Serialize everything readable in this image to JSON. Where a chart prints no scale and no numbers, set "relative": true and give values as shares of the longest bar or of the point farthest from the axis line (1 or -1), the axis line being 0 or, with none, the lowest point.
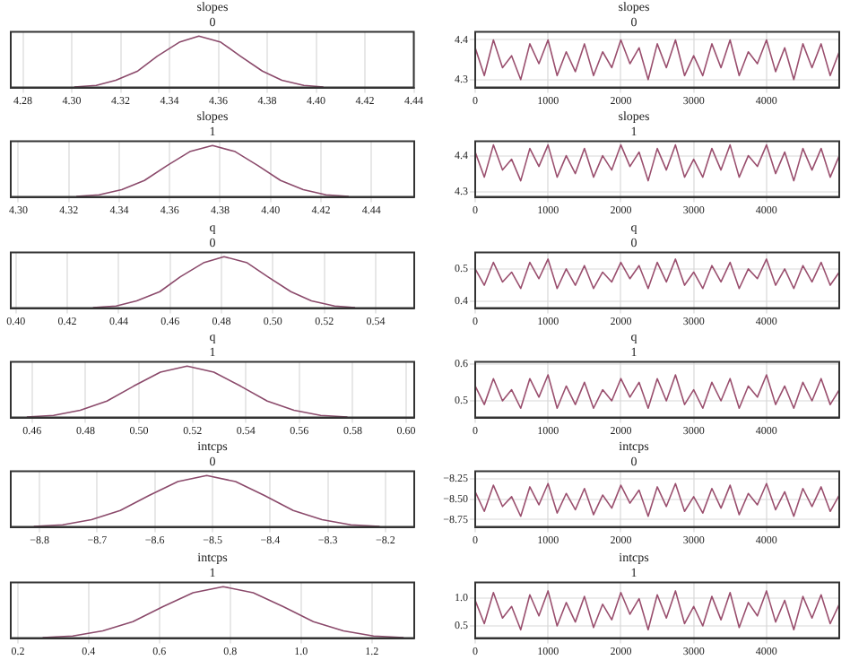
{
  "chart_data": [
    {
      "type": "line",
      "title": "slopes",
      "subtitle": "0",
      "relative": true,
      "grid": "x",
      "marker": "none",
      "x": [
        4.301,
        4.31,
        4.318,
        4.327,
        4.335,
        4.344,
        4.352,
        4.361,
        4.369,
        4.378,
        4.386,
        4.395,
        4.403
      ],
      "series": [
        {
          "color": "#8b4a6b",
          "values": [
            0.01,
            0.04,
            0.14,
            0.32,
            0.61,
            0.88,
            1,
            0.88,
            0.61,
            0.32,
            0.14,
            0.04,
            0.01
          ]
        }
      ],
      "xlim": [
        4.275,
        4.44
      ],
      "xticks": [
        4.28,
        {
          "value": 4.3,
          "label": "4.30"
        },
        4.32,
        4.34,
        4.36,
        4.38,
        {
          "value": 4.4,
          "label": "4.40"
        },
        4.42,
        4.44
      ]
    },
    {
      "type": "line",
      "title": "slopes",
      "subtitle": "0",
      "grid": true,
      "marker": "none",
      "x": [
        0,
        125,
        250,
        375,
        500,
        625,
        750,
        875,
        1000,
        1125,
        1250,
        1375,
        1500,
        1625,
        1750,
        1875,
        2000,
        2125,
        2250,
        2375,
        2500,
        2625,
        2750,
        2875,
        3000,
        3125,
        3250,
        3375,
        3500,
        3625,
        3750,
        3875,
        4000,
        4125,
        4250,
        4375,
        4500,
        4625,
        4750,
        4875,
        4999
      ],
      "series": [
        {
          "color": "#9a4f6e",
          "values": [
            4.38,
            4.31,
            4.4,
            4.33,
            4.36,
            4.3,
            4.39,
            4.34,
            4.4,
            4.31,
            4.37,
            4.32,
            4.39,
            4.31,
            4.37,
            4.33,
            4.4,
            4.34,
            4.38,
            4.3,
            4.39,
            4.33,
            4.4,
            4.31,
            4.36,
            4.31,
            4.39,
            4.33,
            4.4,
            4.31,
            4.37,
            4.34,
            4.4,
            4.32,
            4.38,
            4.3,
            4.39,
            4.33,
            4.39,
            4.31,
            4.37
          ]
        }
      ],
      "xlim": [
        0,
        4999
      ],
      "xticks": [
        0,
        1000,
        2000,
        3000,
        4000
      ],
      "ylim": [
        4.28,
        4.42
      ],
      "yticks": [
        4.3,
        4.4
      ]
    },
    {
      "type": "line",
      "title": "slopes",
      "subtitle": "1",
      "relative": true,
      "grid": "x",
      "marker": "none",
      "x": [
        4.323,
        4.332,
        4.341,
        4.35,
        4.359,
        4.368,
        4.377,
        4.386,
        4.395,
        4.404,
        4.413,
        4.422,
        4.431
      ],
      "series": [
        {
          "color": "#8b4a6b",
          "values": [
            0.01,
            0.04,
            0.14,
            0.32,
            0.61,
            0.88,
            1,
            0.88,
            0.61,
            0.32,
            0.14,
            0.04,
            0.01
          ]
        }
      ],
      "xlim": [
        4.297,
        4.457
      ],
      "xticks": [
        {
          "value": 4.3,
          "label": "4.30"
        },
        4.32,
        4.34,
        4.36,
        4.38,
        {
          "value": 4.4,
          "label": "4.40"
        },
        4.42,
        4.44
      ]
    },
    {
      "type": "line",
      "title": "slopes",
      "subtitle": "1",
      "grid": true,
      "marker": "none",
      "x": [
        0,
        125,
        250,
        375,
        500,
        625,
        750,
        875,
        1000,
        1125,
        1250,
        1375,
        1500,
        1625,
        1750,
        1875,
        2000,
        2125,
        2250,
        2375,
        2500,
        2625,
        2750,
        2875,
        3000,
        3125,
        3250,
        3375,
        3500,
        3625,
        3750,
        3875,
        4000,
        4125,
        4250,
        4375,
        4500,
        4625,
        4750,
        4875,
        4999
      ],
      "series": [
        {
          "color": "#9a4f6e",
          "values": [
            4.41,
            4.34,
            4.43,
            4.36,
            4.39,
            4.33,
            4.42,
            4.37,
            4.43,
            4.34,
            4.4,
            4.35,
            4.42,
            4.34,
            4.4,
            4.36,
            4.43,
            4.37,
            4.41,
            4.33,
            4.42,
            4.36,
            4.43,
            4.34,
            4.39,
            4.34,
            4.42,
            4.36,
            4.43,
            4.34,
            4.4,
            4.37,
            4.43,
            4.35,
            4.41,
            4.33,
            4.42,
            4.36,
            4.42,
            4.34,
            4.4
          ]
        }
      ],
      "xlim": [
        0,
        4999
      ],
      "xticks": [
        0,
        1000,
        2000,
        3000,
        4000
      ],
      "ylim": [
        4.285,
        4.44
      ],
      "yticks": [
        4.3,
        4.4
      ]
    },
    {
      "type": "line",
      "title": "q",
      "subtitle": "0",
      "relative": true,
      "grid": "x",
      "marker": "none",
      "x": [
        0.43,
        0.439,
        0.447,
        0.456,
        0.464,
        0.473,
        0.481,
        0.49,
        0.498,
        0.507,
        0.515,
        0.524,
        0.532
      ],
      "series": [
        {
          "color": "#8b4a6b",
          "values": [
            0.01,
            0.04,
            0.14,
            0.32,
            0.61,
            0.88,
            1,
            0.88,
            0.61,
            0.32,
            0.14,
            0.04,
            0.01
          ]
        }
      ],
      "xlim": [
        0.398,
        0.555
      ],
      "xticks": [
        {
          "value": 0.4,
          "label": "0.40"
        },
        0.42,
        0.44,
        0.46,
        0.48,
        {
          "value": 0.5,
          "label": "0.50"
        },
        0.52,
        0.54
      ]
    },
    {
      "type": "line",
      "title": "q",
      "subtitle": "0",
      "grid": true,
      "marker": "none",
      "x": [
        0,
        125,
        250,
        375,
        500,
        625,
        750,
        875,
        1000,
        1125,
        1250,
        1375,
        1500,
        1625,
        1750,
        1875,
        2000,
        2125,
        2250,
        2375,
        2500,
        2625,
        2750,
        2875,
        3000,
        3125,
        3250,
        3375,
        3500,
        3625,
        3750,
        3875,
        4000,
        4125,
        4250,
        4375,
        4500,
        4625,
        4750,
        4875,
        4999
      ],
      "series": [
        {
          "color": "#9a4f6e",
          "values": [
            0.5,
            0.45,
            0.52,
            0.46,
            0.49,
            0.44,
            0.52,
            0.47,
            0.53,
            0.44,
            0.5,
            0.45,
            0.51,
            0.44,
            0.49,
            0.46,
            0.52,
            0.47,
            0.51,
            0.44,
            0.52,
            0.46,
            0.53,
            0.45,
            0.49,
            0.44,
            0.51,
            0.46,
            0.52,
            0.44,
            0.5,
            0.47,
            0.53,
            0.45,
            0.5,
            0.44,
            0.51,
            0.46,
            0.52,
            0.45,
            0.49
          ]
        }
      ],
      "xlim": [
        0,
        4999
      ],
      "xticks": [
        0,
        1000,
        2000,
        3000,
        4000
      ],
      "ylim": [
        0.38,
        0.55
      ],
      "yticks": [
        0.4,
        0.5
      ]
    },
    {
      "type": "line",
      "title": "q",
      "subtitle": "1",
      "relative": true,
      "grid": "x",
      "marker": "none",
      "x": [
        0.458,
        0.468,
        0.478,
        0.488,
        0.498,
        0.508,
        0.518,
        0.528,
        0.538,
        0.548,
        0.558,
        0.568,
        0.578
      ],
      "series": [
        {
          "color": "#8b4a6b",
          "values": [
            0.01,
            0.04,
            0.14,
            0.32,
            0.61,
            0.88,
            1,
            0.88,
            0.61,
            0.32,
            0.14,
            0.04,
            0.01
          ]
        }
      ],
      "xlim": [
        0.452,
        0.603
      ],
      "xticks": [
        0.46,
        0.48,
        {
          "value": 0.5,
          "label": "0.50"
        },
        0.52,
        0.54,
        0.56,
        0.58,
        {
          "value": 0.6,
          "label": "0.60"
        }
      ]
    },
    {
      "type": "line",
      "title": "q",
      "subtitle": "1",
      "grid": true,
      "marker": "none",
      "x": [
        0,
        125,
        250,
        375,
        500,
        625,
        750,
        875,
        1000,
        1125,
        1250,
        1375,
        1500,
        1625,
        1750,
        1875,
        2000,
        2125,
        2250,
        2375,
        2500,
        2625,
        2750,
        2875,
        3000,
        3125,
        3250,
        3375,
        3500,
        3625,
        3750,
        3875,
        4000,
        4125,
        4250,
        4375,
        4500,
        4625,
        4750,
        4875,
        4999
      ],
      "series": [
        {
          "color": "#9a4f6e",
          "values": [
            0.54,
            0.49,
            0.56,
            0.5,
            0.53,
            0.48,
            0.56,
            0.51,
            0.57,
            0.48,
            0.54,
            0.49,
            0.55,
            0.48,
            0.53,
            0.5,
            0.56,
            0.51,
            0.55,
            0.48,
            0.56,
            0.5,
            0.57,
            0.49,
            0.53,
            0.48,
            0.55,
            0.5,
            0.56,
            0.48,
            0.54,
            0.51,
            0.57,
            0.49,
            0.54,
            0.48,
            0.55,
            0.5,
            0.56,
            0.49,
            0.53
          ]
        }
      ],
      "xlim": [
        0,
        4999
      ],
      "xticks": [
        0,
        1000,
        2000,
        3000,
        4000
      ],
      "ylim": [
        0.455,
        0.605
      ],
      "yticks": [
        0.5,
        0.6
      ]
    },
    {
      "type": "line",
      "title": "intcps",
      "subtitle": "0",
      "relative": true,
      "grid": "x",
      "marker": "none",
      "x": [
        -8.81,
        -8.76,
        -8.71,
        -8.66,
        -8.61,
        -8.56,
        -8.51,
        -8.46,
        -8.41,
        -8.36,
        -8.31,
        -8.26,
        -8.21
      ],
      "series": [
        {
          "color": "#8b4a6b",
          "values": [
            0.01,
            0.04,
            0.14,
            0.32,
            0.61,
            0.88,
            1,
            0.88,
            0.61,
            0.32,
            0.14,
            0.04,
            0.01
          ]
        }
      ],
      "xlim": [
        -8.85,
        -8.15
      ],
      "xticks": [
        {
          "value": -8.8,
          "label": "−8.8"
        },
        {
          "value": -8.7,
          "label": "−8.7"
        },
        {
          "value": -8.6,
          "label": "−8.6"
        },
        {
          "value": -8.5,
          "label": "−8.5"
        },
        {
          "value": -8.4,
          "label": "−8.4"
        },
        {
          "value": -8.3,
          "label": "−8.3"
        },
        {
          "value": -8.2,
          "label": "−8.2"
        }
      ]
    },
    {
      "type": "line",
      "title": "intcps",
      "subtitle": "0",
      "grid": true,
      "marker": "none",
      "x": [
        0,
        125,
        250,
        375,
        500,
        625,
        750,
        875,
        1000,
        1125,
        1250,
        1375,
        1500,
        1625,
        1750,
        1875,
        2000,
        2125,
        2250,
        2375,
        2500,
        2625,
        2750,
        2875,
        3000,
        3125,
        3250,
        3375,
        3500,
        3625,
        3750,
        3875,
        4000,
        4125,
        4250,
        4375,
        4500,
        4625,
        4750,
        4875,
        4999
      ],
      "series": [
        {
          "color": "#9a4f6e",
          "values": [
            -8.41,
            -8.65,
            -8.33,
            -8.59,
            -8.47,
            -8.71,
            -8.35,
            -8.57,
            -8.31,
            -8.67,
            -8.43,
            -8.63,
            -8.37,
            -8.69,
            -8.45,
            -8.61,
            -8.33,
            -8.55,
            -8.39,
            -8.71,
            -8.35,
            -8.59,
            -8.31,
            -8.65,
            -8.47,
            -8.67,
            -8.37,
            -8.61,
            -8.33,
            -8.69,
            -8.43,
            -8.57,
            -8.31,
            -8.63,
            -8.41,
            -8.71,
            -8.37,
            -8.59,
            -8.35,
            -8.65,
            -8.45
          ]
        }
      ],
      "xlim": [
        0,
        4999
      ],
      "xticks": [
        0,
        1000,
        2000,
        3000,
        4000
      ],
      "ylim": [
        -8.84,
        -8.16
      ],
      "yticks": [
        {
          "value": -8.75,
          "label": "−8.75"
        },
        {
          "value": -8.5,
          "label": "−8.50"
        },
        {
          "value": -8.25,
          "label": "−8.25"
        }
      ]
    },
    {
      "type": "line",
      "title": "intcps",
      "subtitle": "1",
      "relative": true,
      "grid": "x",
      "marker": "none",
      "x": [
        0.27,
        0.355,
        0.44,
        0.525,
        0.61,
        0.695,
        0.78,
        0.865,
        0.95,
        1.035,
        1.12,
        1.205,
        1.29
      ],
      "series": [
        {
          "color": "#8b4a6b",
          "values": [
            0.01,
            0.04,
            0.14,
            0.32,
            0.61,
            0.88,
            1,
            0.88,
            0.61,
            0.32,
            0.14,
            0.04,
            0.01
          ]
        }
      ],
      "xlim": [
        0.18,
        1.32
      ],
      "xticks": [
        0.2,
        0.4,
        0.6,
        0.8,
        {
          "value": 1,
          "label": "1.0"
        },
        1.2
      ]
    },
    {
      "type": "line",
      "title": "intcps",
      "subtitle": "1",
      "grid": true,
      "marker": "none",
      "x": [
        0,
        125,
        250,
        375,
        500,
        625,
        750,
        875,
        1000,
        1125,
        1250,
        1375,
        1500,
        1625,
        1750,
        1875,
        2000,
        2125,
        2250,
        2375,
        2500,
        2625,
        2750,
        2875,
        3000,
        3125,
        3250,
        3375,
        3500,
        3625,
        3750,
        3875,
        4000,
        4125,
        4250,
        4375,
        4500,
        4625,
        4750,
        4875,
        4999
      ],
      "series": [
        {
          "color": "#9a4f6e",
          "values": [
            0.96,
            0.54,
            1.1,
            0.64,
            0.85,
            0.43,
            1.06,
            0.68,
            1.13,
            0.5,
            0.92,
            0.57,
            1.03,
            0.47,
            0.89,
            0.61,
            1.1,
            0.71,
            0.99,
            0.43,
            1.06,
            0.64,
            1.13,
            0.54,
            0.85,
            0.5,
            1.03,
            0.61,
            1.1,
            0.47,
            0.92,
            0.68,
            1.13,
            0.57,
            0.96,
            0.43,
            1.03,
            0.64,
            1.06,
            0.54,
            0.89
          ]
        }
      ],
      "xlim": [
        0,
        4999
      ],
      "xticks": [
        0,
        1000,
        2000,
        3000,
        4000
      ],
      "ylim": [
        0.28,
        1.28
      ],
      "yticks": [
        0.5,
        {
          "value": 1,
          "label": "1.0"
        }
      ]
    }
  ]
}
